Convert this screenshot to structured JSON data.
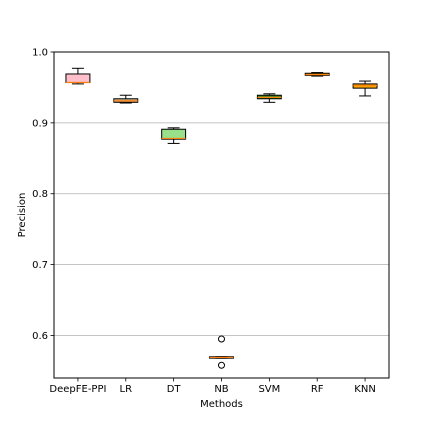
{
  "chart_data": {
    "type": "box",
    "title": "",
    "xlabel": "Methods",
    "ylabel": "Precision",
    "ylim": [
      0.54,
      1.0
    ],
    "yticks": [
      0.6,
      0.7,
      0.8,
      0.9,
      1.0
    ],
    "ytick_labels": [
      "0.6",
      "0.7",
      "0.8",
      "0.9",
      "1.0"
    ],
    "grid": "horizontal",
    "categories": [
      "DeepFE-PPI",
      "LR",
      "DT",
      "NB",
      "SVM",
      "RF",
      "KNN"
    ],
    "boxes": [
      {
        "label": "DeepFE-PPI",
        "whisker_low": 0.955,
        "q1": 0.957,
        "median": 0.957,
        "q3": 0.969,
        "whisker_high": 0.977,
        "fliers": [],
        "color": "#ffc0cb"
      },
      {
        "label": "LR",
        "whisker_low": 0.928,
        "q1": 0.929,
        "median": 0.931,
        "q3": 0.934,
        "whisker_high": 0.939,
        "fliers": [],
        "color": "#d2b48c"
      },
      {
        "label": "DT",
        "whisker_low": 0.871,
        "q1": 0.877,
        "median": 0.878,
        "q3": 0.891,
        "whisker_high": 0.893,
        "fliers": [],
        "color": "#98e089"
      },
      {
        "label": "NB",
        "whisker_low": 0.568,
        "q1": 0.568,
        "median": 0.569,
        "q3": 0.57,
        "whisker_high": 0.57,
        "fliers": [
          0.595,
          0.558
        ],
        "color": "#ff8c00"
      },
      {
        "label": "SVM",
        "whisker_low": 0.929,
        "q1": 0.934,
        "median": 0.936,
        "q3": 0.939,
        "whisker_high": 0.941,
        "fliers": [],
        "color": "#2e8b22"
      },
      {
        "label": "RF",
        "whisker_low": 0.966,
        "q1": 0.967,
        "median": 0.968,
        "q3": 0.97,
        "whisker_high": 0.971,
        "fliers": [],
        "color": "#ffa500"
      },
      {
        "label": "KNN",
        "whisker_low": 0.938,
        "q1": 0.949,
        "median": 0.953,
        "q3": 0.955,
        "whisker_high": 0.959,
        "fliers": [],
        "color": "#ffa500"
      }
    ],
    "median_color": "#ff7f0e",
    "grid_color": "#b0b0b0"
  }
}
